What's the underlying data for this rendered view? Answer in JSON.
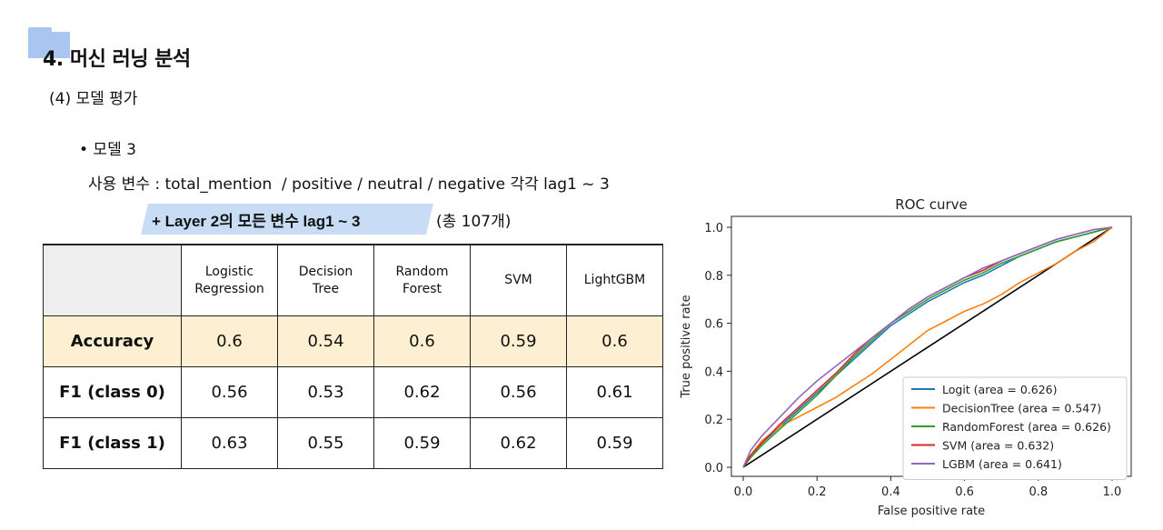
{
  "section": {
    "title": "4. 머신 러닝 분석"
  },
  "subsection": {
    "label": "(4) 모델 평가"
  },
  "model": {
    "bullet": "• 모델 3",
    "variables": "사용 변수 : total_mention  / positive / neutral / negative 각각 lag1 ~ 3",
    "highlight": "+ Layer 2의 모든 변수 lag1 ~ 3",
    "total": "(총 107개)"
  },
  "table": {
    "columns": [
      "Logistic\nRegression",
      "Decision\nTree",
      "Random\nForest",
      "SVM",
      "LightGBM"
    ],
    "rows": [
      {
        "label": "Accuracy",
        "values": [
          "0.6",
          "0.54",
          "0.6",
          "0.59",
          "0.6"
        ]
      },
      {
        "label": "F1 (class 0)",
        "values": [
          "0.56",
          "0.53",
          "0.62",
          "0.56",
          "0.61"
        ]
      },
      {
        "label": "F1 (class 1)",
        "values": [
          "0.63",
          "0.55",
          "0.59",
          "0.62",
          "0.59"
        ]
      }
    ],
    "accuracy_highlight_color": "#fdf0d2",
    "header_corner_color": "#eeeeee"
  },
  "chart_data": {
    "type": "line",
    "title": "ROC curve",
    "xlabel": "False positive rate",
    "ylabel": "True positive rate",
    "xlim": [
      0,
      1
    ],
    "ylim": [
      0,
      1
    ],
    "xticks": [
      "0.0",
      "0.2",
      "0.4",
      "0.6",
      "0.8",
      "1.0"
    ],
    "yticks": [
      "0.0",
      "0.2",
      "0.4",
      "0.6",
      "0.8",
      "1.0"
    ],
    "grid": false,
    "legend_position": "lower-right",
    "series": [
      {
        "name": "Logit (area = 0.626)",
        "color": "#1f77b4",
        "x": [
          0,
          0.02,
          0.05,
          0.1,
          0.15,
          0.2,
          0.25,
          0.3,
          0.35,
          0.4,
          0.45,
          0.5,
          0.55,
          0.6,
          0.65,
          0.7,
          0.75,
          0.8,
          0.85,
          0.9,
          0.95,
          1.0
        ],
        "y": [
          0,
          0.05,
          0.1,
          0.17,
          0.24,
          0.31,
          0.38,
          0.45,
          0.52,
          0.59,
          0.64,
          0.69,
          0.73,
          0.77,
          0.8,
          0.84,
          0.88,
          0.91,
          0.94,
          0.96,
          0.98,
          1.0
        ]
      },
      {
        "name": "DecisionTree (area = 0.547)",
        "color": "#ff7f0e",
        "x": [
          0,
          0.02,
          0.05,
          0.1,
          0.15,
          0.2,
          0.25,
          0.3,
          0.35,
          0.4,
          0.45,
          0.5,
          0.55,
          0.6,
          0.65,
          0.7,
          0.75,
          0.8,
          0.85,
          0.9,
          0.95,
          1.0
        ],
        "y": [
          0,
          0.05,
          0.11,
          0.17,
          0.21,
          0.25,
          0.29,
          0.34,
          0.39,
          0.45,
          0.51,
          0.57,
          0.61,
          0.65,
          0.68,
          0.72,
          0.77,
          0.81,
          0.85,
          0.9,
          0.94,
          1.0
        ]
      },
      {
        "name": "RandomForest (area = 0.626)",
        "color": "#2ca02c",
        "x": [
          0,
          0.02,
          0.05,
          0.1,
          0.15,
          0.2,
          0.25,
          0.3,
          0.35,
          0.4,
          0.45,
          0.5,
          0.55,
          0.6,
          0.65,
          0.7,
          0.75,
          0.8,
          0.85,
          0.9,
          0.95,
          1.0
        ],
        "y": [
          0,
          0.04,
          0.09,
          0.16,
          0.23,
          0.3,
          0.38,
          0.46,
          0.53,
          0.6,
          0.65,
          0.7,
          0.74,
          0.78,
          0.81,
          0.85,
          0.88,
          0.91,
          0.94,
          0.96,
          0.98,
          1.0
        ]
      },
      {
        "name": "SVM (area = 0.632)",
        "color": "#d62728",
        "x": [
          0,
          0.02,
          0.05,
          0.1,
          0.15,
          0.2,
          0.25,
          0.3,
          0.35,
          0.4,
          0.45,
          0.5,
          0.55,
          0.6,
          0.65,
          0.7,
          0.75,
          0.8,
          0.85,
          0.9,
          0.95,
          1.0
        ],
        "y": [
          0,
          0.05,
          0.1,
          0.18,
          0.25,
          0.32,
          0.39,
          0.47,
          0.54,
          0.6,
          0.66,
          0.71,
          0.75,
          0.79,
          0.82,
          0.86,
          0.89,
          0.92,
          0.95,
          0.97,
          0.99,
          1.0
        ]
      },
      {
        "name": "LGBM (area = 0.641)",
        "color": "#9467bd",
        "x": [
          0,
          0.02,
          0.05,
          0.1,
          0.15,
          0.2,
          0.25,
          0.3,
          0.35,
          0.4,
          0.45,
          0.5,
          0.55,
          0.6,
          0.65,
          0.7,
          0.75,
          0.8,
          0.85,
          0.9,
          0.95,
          1.0
        ],
        "y": [
          0,
          0.07,
          0.13,
          0.21,
          0.29,
          0.36,
          0.42,
          0.48,
          0.54,
          0.6,
          0.66,
          0.71,
          0.75,
          0.79,
          0.83,
          0.86,
          0.89,
          0.92,
          0.95,
          0.97,
          0.99,
          1.0
        ]
      }
    ],
    "diagonal": {
      "x": [
        0,
        1
      ],
      "y": [
        0,
        1
      ],
      "color": "#000000"
    }
  }
}
